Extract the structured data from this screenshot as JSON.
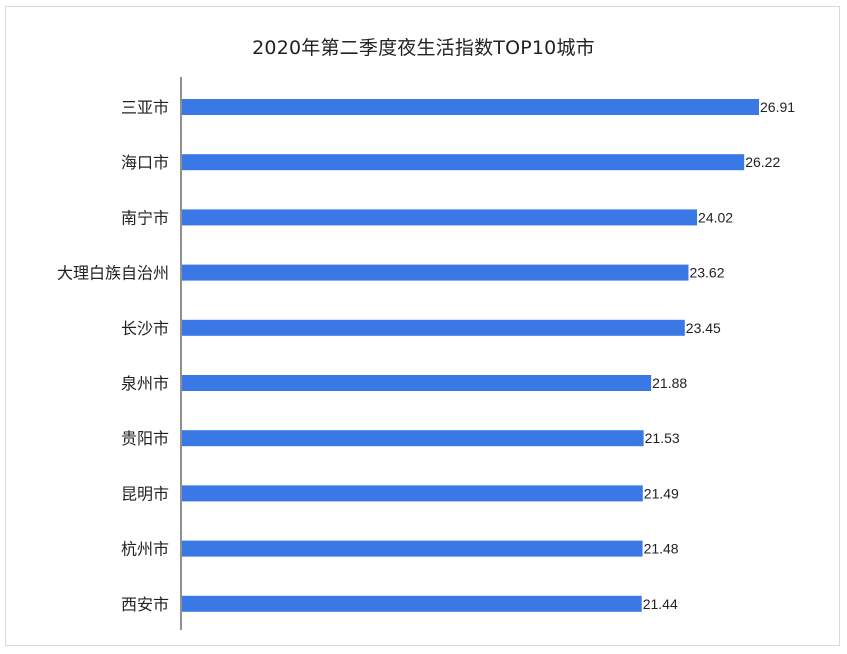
{
  "chart_data": {
    "type": "bar",
    "orientation": "horizontal",
    "title": "2020年第二季度夜生活指数TOP10城市",
    "categories": [
      "三亚市",
      "海口市",
      "南宁市",
      "大理白族自治州",
      "长沙市",
      "泉州市",
      "贵阳市",
      "昆明市",
      "杭州市",
      "西安市"
    ],
    "values": [
      26.91,
      26.22,
      24.02,
      23.62,
      23.45,
      21.88,
      21.53,
      21.49,
      21.48,
      21.44
    ],
    "value_labels": [
      "26.91",
      "26.22",
      "24.02",
      "23.62",
      "23.45",
      "21.88",
      "21.53",
      "21.49",
      "21.48",
      "21.44"
    ],
    "xlabel": "",
    "ylabel": "",
    "xlim": [
      0,
      26.91
    ],
    "grid": false,
    "legend": "none",
    "bar_color": "#3a78e6",
    "axis_color": "#222222"
  }
}
